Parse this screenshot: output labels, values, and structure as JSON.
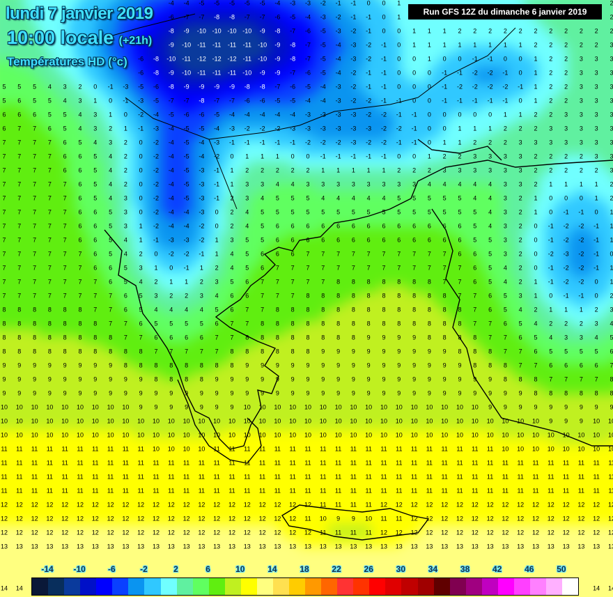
{
  "header": {
    "date": "lundi 7 janvier 2019",
    "time": "10:00 locale",
    "lead": "(+21h)",
    "variable": "Températures HD (°c)",
    "run": "Run GFS 12Z du dimanche 6 janvier 2019"
  },
  "legend": {
    "unit": "°C",
    "labels": [
      "-14",
      "-10",
      "-6",
      "-2",
      "2",
      "6",
      "10",
      "14",
      "18",
      "22",
      "26",
      "30",
      "34",
      "38",
      "42",
      "46",
      "50"
    ],
    "colors": [
      "#0a1838",
      "#082e5c",
      "#0a3a9c",
      "#0010c8",
      "#0000ff",
      "#0a40ff",
      "#0a94f0",
      "#30c8ff",
      "#70ffff",
      "#60f0a0",
      "#60ff60",
      "#60ee10",
      "#c0f020",
      "#ffff00",
      "#ffff80",
      "#ffe050",
      "#ffcc00",
      "#ff9900",
      "#ff6600",
      "#ff3333",
      "#ff3300",
      "#ff0000",
      "#e00000",
      "#c00000",
      "#a00000",
      "#600000",
      "#800050",
      "#a00080",
      "#c000c0",
      "#ff00ff",
      "#ff40ff",
      "#ff80ff",
      "#ffb0ff",
      "#ffffff"
    ]
  }
}
